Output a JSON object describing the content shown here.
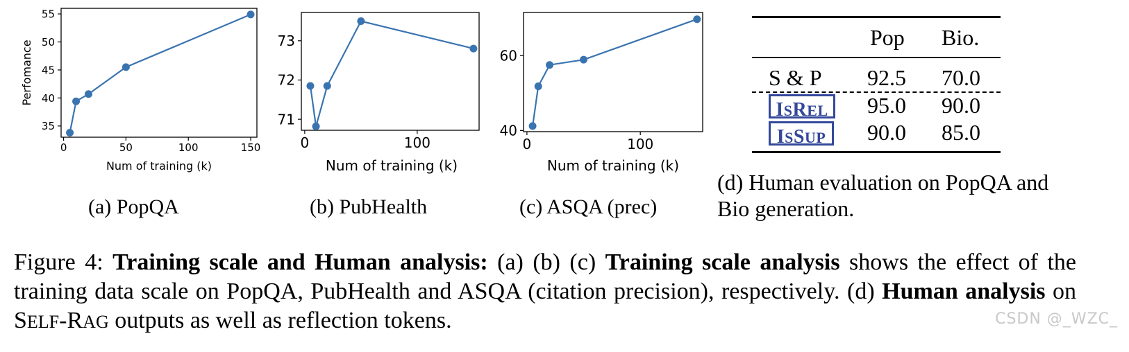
{
  "chart_data": [
    {
      "type": "line",
      "x": [
        5,
        10,
        20,
        50,
        150
      ],
      "y": [
        33.8,
        39.4,
        40.7,
        45.5,
        54.9
      ],
      "xlim": [
        -2,
        155
      ],
      "ylim": [
        33.0,
        56.0
      ],
      "xticks": [
        "0",
        "50",
        "100",
        "150"
      ],
      "yticks": [
        "35",
        "40",
        "45",
        "50",
        "55"
      ],
      "xlabel": "Num of training (k)",
      "ylabel": "Perfomance",
      "color": "#3a74b0",
      "subcaption": "(a) PopQA"
    },
    {
      "type": "line",
      "x": [
        5,
        10,
        20,
        50,
        150
      ],
      "y": [
        71.85,
        70.82,
        71.85,
        73.5,
        72.8
      ],
      "xlim": [
        -3,
        155
      ],
      "ylim": [
        70.72,
        73.72
      ],
      "xticks": [
        "0",
        "100"
      ],
      "yticks": [
        "71",
        "72",
        "73"
      ],
      "xlabel": "Num of training (k)",
      "ylabel": "",
      "color": "#3a74b0",
      "subcaption": "(b) PubHealth"
    },
    {
      "type": "line",
      "x": [
        5,
        10,
        20,
        50,
        150
      ],
      "y": [
        41.2,
        51.8,
        57.5,
        58.9,
        69.7
      ],
      "xlim": [
        -3,
        155
      ],
      "ylim": [
        39.7,
        71.5
      ],
      "xticks": [
        "0",
        "100"
      ],
      "yticks": [
        "40",
        "60"
      ],
      "xlabel": "Num of training (k)",
      "ylabel": "",
      "color": "#3a74b0",
      "subcaption": "(c) ASQA (prec)"
    }
  ],
  "table": {
    "headers": [
      "",
      "Pop",
      "Bio."
    ],
    "rows": [
      {
        "label": "S & P",
        "values": [
          "92.5",
          "70.0"
        ]
      },
      {
        "label_token": {
          "first": "I",
          "rest_a": "S",
          "big2": "R",
          "rest_b": "EL"
        },
        "values": [
          "95.0",
          "90.0"
        ]
      },
      {
        "label_token": {
          "first": "I",
          "rest_a": "S",
          "big2": "S",
          "rest_b": "UP"
        },
        "values": [
          "90.0",
          "85.0"
        ]
      }
    ],
    "caption": "(d) Human evaluation on PopQA and Bio generation.",
    "token_color": "#34489a"
  },
  "figure_caption": {
    "prefix": "Figure 4: ",
    "bold1": "Training scale and Human analysis:",
    "text1": " (a) (b) (c) ",
    "bold2": "Training scale analysis",
    "text2": " shows the effect of the training data scale on PopQA, PubHealth and ASQA (citation precision), respectively. (d) ",
    "bold3": "Human analysis",
    "text3a": " on ",
    "selfrag_S": "S",
    "selfrag_elf": "ELF",
    "selfrag_dash": "-",
    "selfrag_R": "R",
    "selfrag_ag": "AG",
    "text3b": " outputs as well as reflection tokens."
  },
  "watermark": "CSDN @_WZC_"
}
